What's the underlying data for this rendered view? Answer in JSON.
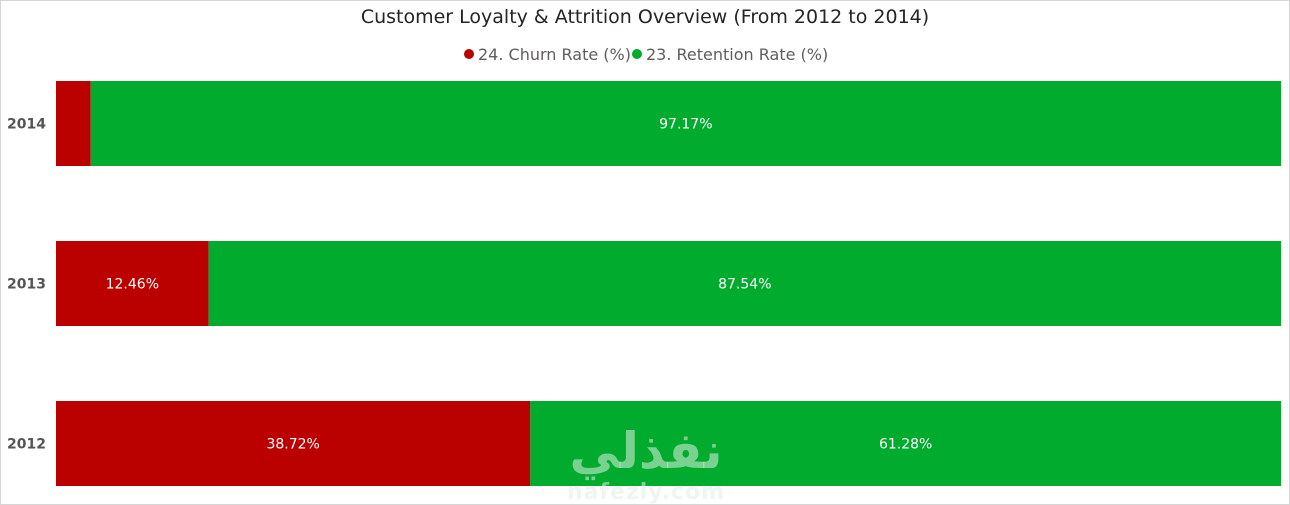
{
  "chart_data": {
    "type": "bar",
    "orientation": "horizontal",
    "stacked": "100%",
    "title": "Customer Loyalty & Attrition Overview (From 2012 to 2014)",
    "legend_position": "top-center",
    "categories": [
      "2014",
      "2013",
      "2012"
    ],
    "series": [
      {
        "name": "24. Churn Rate (%)",
        "color": "#bb0000",
        "values": [
          2.83,
          12.46,
          38.72
        ],
        "labels": [
          "",
          "12.46%",
          "38.72%"
        ]
      },
      {
        "name": "23. Retention Rate (%)",
        "color": "#00ab2e",
        "values": [
          97.17,
          87.54,
          61.28
        ],
        "labels": [
          "97.17%",
          "87.54%",
          "61.28%"
        ]
      }
    ],
    "xlim": [
      0,
      100
    ],
    "grid": false
  },
  "watermark": {
    "arabic": "نفذلي",
    "latin": "nafezly.com",
    "color": "#dff0e2"
  }
}
